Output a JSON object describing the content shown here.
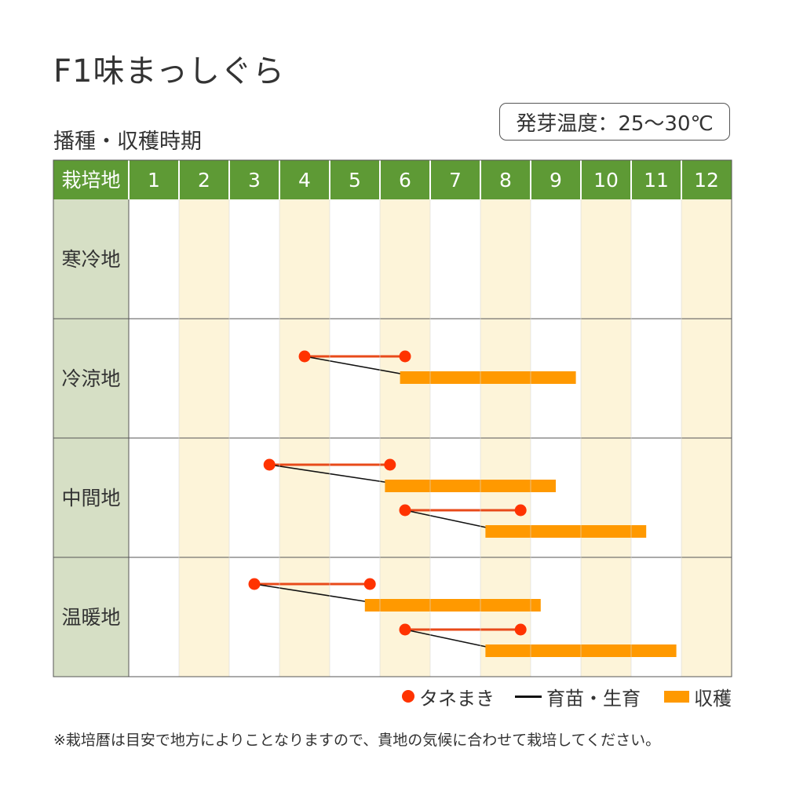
{
  "title": "F1味まっしぐら",
  "subtitle": "播種・収穫時期",
  "germination": "発芽温度：25〜30℃",
  "note": "※栽培暦は目安で地方によりことなりますので、貴地の気候に合わせて栽培してください。",
  "legend": {
    "sowing": "タネまき",
    "raising": "育苗・生育",
    "harvest": "収穫"
  },
  "colors": {
    "header_bg": "#5e9a35",
    "region_bg": "#d6dfc5",
    "stripe": "#fdf4d9",
    "sowing": "#ff3300",
    "sowing_line": "#e84a1a",
    "raising": "#111111",
    "harvest": "#ff9900",
    "grid": "#555555"
  },
  "chart_data": {
    "type": "gantt",
    "header_label": "栽培地",
    "months": [
      "1",
      "2",
      "3",
      "4",
      "5",
      "6",
      "7",
      "8",
      "9",
      "10",
      "11",
      "12"
    ],
    "regions": [
      {
        "name": "寒冷地",
        "schedules": []
      },
      {
        "name": "冷涼地",
        "schedules": [
          {
            "sow_start": 4.5,
            "sow_end": 6.5,
            "harvest_start": 6.4,
            "harvest_end": 9.9
          }
        ]
      },
      {
        "name": "中間地",
        "schedules": [
          {
            "sow_start": 3.8,
            "sow_end": 6.2,
            "harvest_start": 6.1,
            "harvest_end": 9.5
          },
          {
            "sow_start": 6.5,
            "sow_end": 8.8,
            "harvest_start": 8.1,
            "harvest_end": 11.3
          }
        ]
      },
      {
        "name": "温暖地",
        "schedules": [
          {
            "sow_start": 3.5,
            "sow_end": 5.8,
            "harvest_start": 5.7,
            "harvest_end": 9.2
          },
          {
            "sow_start": 6.5,
            "sow_end": 8.8,
            "harvest_start": 8.1,
            "harvest_end": 11.9
          }
        ]
      }
    ]
  }
}
